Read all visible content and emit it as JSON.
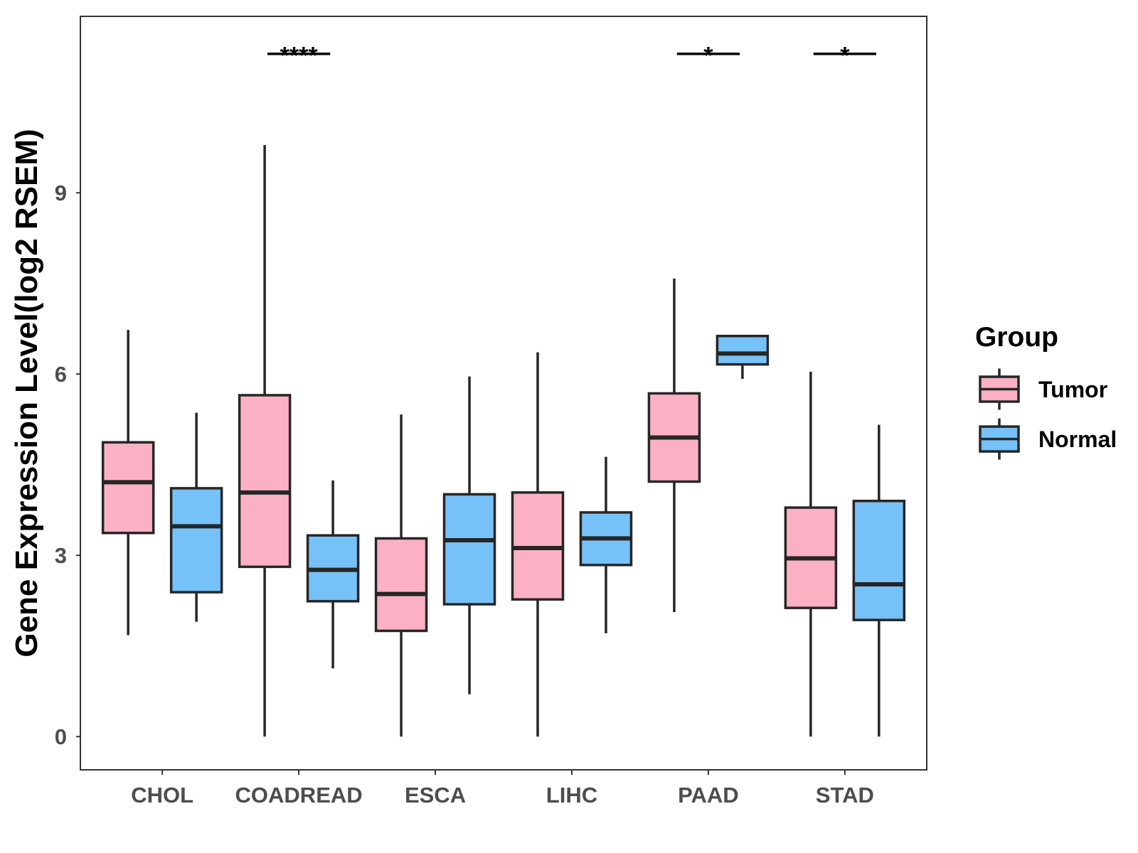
{
  "chart_data": {
    "type": "box",
    "title": "",
    "xlabel": "",
    "ylabel": "Gene Expression Level(log2 RSEM)",
    "categories": [
      "CHOL",
      "COADREAD",
      "ESCA",
      "LIHC",
      "PAAD",
      "STAD"
    ],
    "yticks": [
      0,
      3,
      6,
      9
    ],
    "ylim": [
      -0.55,
      11.92
    ],
    "grid": false,
    "legend": {
      "title": "Group",
      "position": "right"
    },
    "line_color": "#262626",
    "series": [
      {
        "name": "Tumor",
        "color": "#FBB1C3",
        "boxes": [
          {
            "min": 1.68,
            "q1": 3.37,
            "median": 4.21,
            "q3": 4.87,
            "max": 6.73
          },
          {
            "min": 0.0,
            "q1": 2.81,
            "median": 4.04,
            "q3": 5.65,
            "max": 9.79
          },
          {
            "min": 0.0,
            "q1": 1.75,
            "median": 2.36,
            "q3": 3.28,
            "max": 5.33
          },
          {
            "min": 0.0,
            "q1": 2.27,
            "median": 3.12,
            "q3": 4.04,
            "max": 6.36
          },
          {
            "min": 2.06,
            "q1": 4.22,
            "median": 4.95,
            "q3": 5.68,
            "max": 7.58
          },
          {
            "min": 0.0,
            "q1": 2.13,
            "median": 2.95,
            "q3": 3.79,
            "max": 6.04
          }
        ]
      },
      {
        "name": "Normal",
        "color": "#76C1F8",
        "boxes": [
          {
            "min": 1.9,
            "q1": 2.39,
            "median": 3.48,
            "q3": 4.11,
            "max": 5.36
          },
          {
            "min": 1.13,
            "q1": 2.24,
            "median": 2.76,
            "q3": 3.33,
            "max": 4.24
          },
          {
            "min": 0.7,
            "q1": 2.19,
            "median": 3.25,
            "q3": 4.01,
            "max": 5.96
          },
          {
            "min": 1.71,
            "q1": 2.84,
            "median": 3.28,
            "q3": 3.71,
            "max": 4.63
          },
          {
            "min": 5.92,
            "q1": 6.16,
            "median": 6.34,
            "q3": 6.63,
            "max": 6.63
          },
          {
            "min": 0.0,
            "q1": 1.93,
            "median": 2.52,
            "q3": 3.9,
            "max": 5.16
          }
        ]
      }
    ],
    "annotations": [
      {
        "category": "COADREAD",
        "label": "****",
        "y": 11.3
      },
      {
        "category": "PAAD",
        "label": "*",
        "y": 11.3
      },
      {
        "category": "STAD",
        "label": "*",
        "y": 11.3
      }
    ]
  }
}
